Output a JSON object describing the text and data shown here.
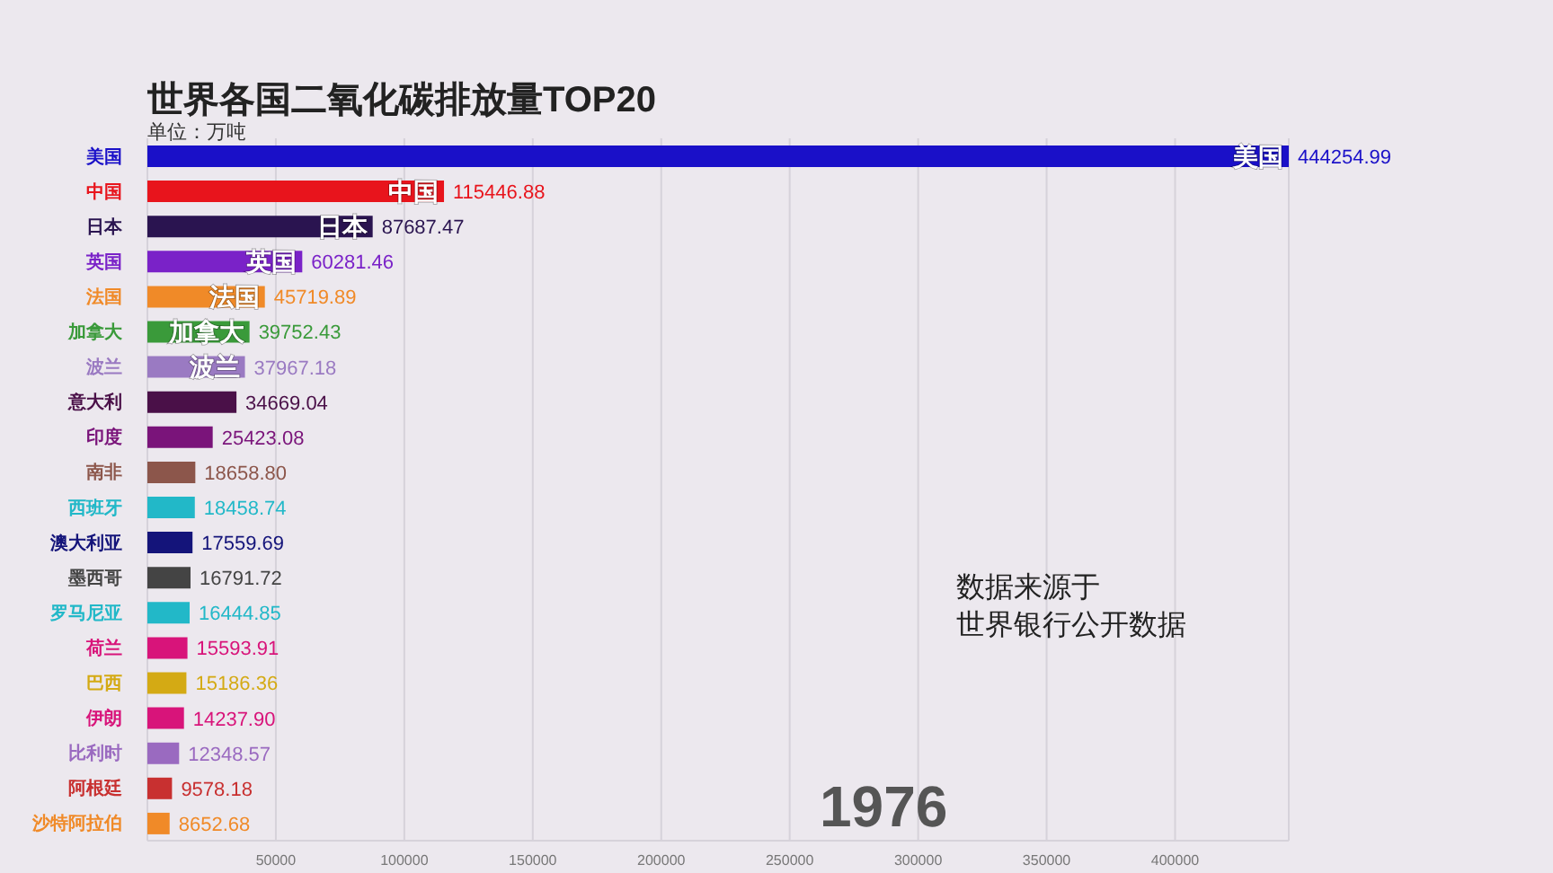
{
  "chart_data": {
    "type": "bar",
    "orientation": "horizontal",
    "title": "世界各国二氧化碳排放量TOP20",
    "subtitle": "单位：万吨",
    "categories": [
      "美国",
      "中国",
      "日本",
      "英国",
      "法国",
      "加拿大",
      "波兰",
      "意大利",
      "印度",
      "南非",
      "西班牙",
      "澳大利亚",
      "墨西哥",
      "罗马尼亚",
      "荷兰",
      "巴西",
      "伊朗",
      "比利时",
      "阿根廷",
      "沙特阿拉伯"
    ],
    "values": [
      444254.99,
      115446.88,
      87687.47,
      60281.46,
      45719.89,
      39752.43,
      37967.18,
      34669.04,
      25423.08,
      18658.8,
      18458.74,
      17559.69,
      16791.72,
      16444.85,
      15593.91,
      15186.36,
      14237.9,
      12348.57,
      9578.18,
      8652.68
    ],
    "colors": [
      "#1a10c8",
      "#e8141c",
      "#2a1450",
      "#7a22c8",
      "#f08a28",
      "#3a9a3a",
      "#9a7ac2",
      "#4a1048",
      "#7a147a",
      "#8c564b",
      "#22b8c8",
      "#14147a",
      "#444444",
      "#22b8c8",
      "#d8147a",
      "#d4aa14",
      "#d8147a",
      "#9a6ac0",
      "#c83030",
      "#f08a28"
    ],
    "value_labels": [
      "444254.99",
      "115446.88",
      "87687.47",
      "60281.46",
      "45719.89",
      "39752.43",
      "37967.18",
      "34669.04",
      "25423.08",
      "18658.80",
      "18458.74",
      "17559.69",
      "16791.72",
      "16444.85",
      "15593.91",
      "15186.36",
      "14237.90",
      "12348.57",
      "9578.18",
      "8652.68"
    ],
    "xlim": [
      0,
      444254.99
    ],
    "xticks": [
      50000,
      100000,
      150000,
      200000,
      250000,
      300000,
      350000,
      400000
    ],
    "grid": "x",
    "annotations": [
      {
        "text": "美国",
        "x": 444254.99,
        "y": "美国"
      },
      {
        "text": "中国",
        "x": 115446.88,
        "y": "中国"
      },
      {
        "text": "日本",
        "x": 87687.47,
        "y": "日本"
      },
      {
        "text": "英国",
        "x": 60281.46,
        "y": "英国"
      },
      {
        "text": "法国",
        "x": 45719.89,
        "y": "法国"
      },
      {
        "text": "加拿大",
        "x": 39752.43,
        "y": "加拿大"
      },
      {
        "text": "波兰",
        "x": 37967.18,
        "y": "波兰"
      },
      "数据来源于",
      "世界银行公开数据",
      "1976"
    ]
  }
}
